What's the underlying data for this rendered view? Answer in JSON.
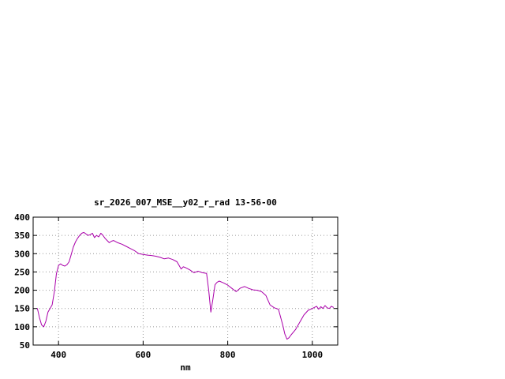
{
  "page": {
    "background": "#ffffff"
  },
  "chart_data": {
    "type": "line",
    "title": "sr_2026_007_MSE__y02_r_rad 13-56-00",
    "xlabel": "nm",
    "ylabel": "",
    "xlim": [
      340,
      1060
    ],
    "ylim": [
      50,
      400
    ],
    "xticks": [
      400,
      600,
      800,
      1000
    ],
    "yticks": [
      50,
      100,
      150,
      200,
      250,
      300,
      350,
      400
    ],
    "grid": true,
    "legend": "none",
    "line_color": "#aa00aa",
    "border_color": "#000000",
    "grid_color": "#999999",
    "tick_label_color": "#000000",
    "series": [
      {
        "name": "sr_2026_007_MSE__y02_r_rad",
        "x": [
          350,
          355,
          360,
          365,
          370,
          375,
          380,
          385,
          390,
          395,
          400,
          405,
          410,
          415,
          420,
          425,
          430,
          435,
          440,
          445,
          450,
          455,
          460,
          465,
          470,
          475,
          480,
          485,
          490,
          495,
          500,
          505,
          510,
          515,
          520,
          525,
          530,
          540,
          550,
          560,
          570,
          580,
          590,
          600,
          610,
          620,
          630,
          640,
          650,
          660,
          670,
          680,
          690,
          695,
          700,
          710,
          720,
          730,
          740,
          750,
          755,
          760,
          765,
          770,
          775,
          780,
          790,
          800,
          810,
          820,
          830,
          840,
          850,
          860,
          870,
          880,
          890,
          900,
          910,
          920,
          930,
          935,
          940,
          945,
          950,
          960,
          970,
          980,
          990,
          1000,
          1010,
          1015,
          1020,
          1025,
          1030,
          1035,
          1040,
          1045,
          1050
        ],
        "y": [
          150,
          125,
          105,
          100,
          115,
          140,
          150,
          160,
          195,
          245,
          268,
          272,
          268,
          266,
          270,
          278,
          298,
          318,
          332,
          342,
          350,
          356,
          358,
          354,
          350,
          352,
          356,
          344,
          350,
          346,
          356,
          350,
          342,
          336,
          330,
          334,
          336,
          330,
          326,
          320,
          314,
          308,
          300,
          298,
          296,
          295,
          293,
          290,
          286,
          288,
          284,
          278,
          258,
          264,
          262,
          256,
          248,
          252,
          248,
          246,
          200,
          140,
          175,
          215,
          222,
          225,
          220,
          214,
          205,
          196,
          206,
          210,
          205,
          201,
          200,
          196,
          186,
          160,
          152,
          148,
          105,
          80,
          66,
          70,
          78,
          92,
          112,
          132,
          145,
          150,
          156,
          148,
          155,
          150,
          158,
          152,
          150,
          156,
          153
        ]
      }
    ]
  }
}
